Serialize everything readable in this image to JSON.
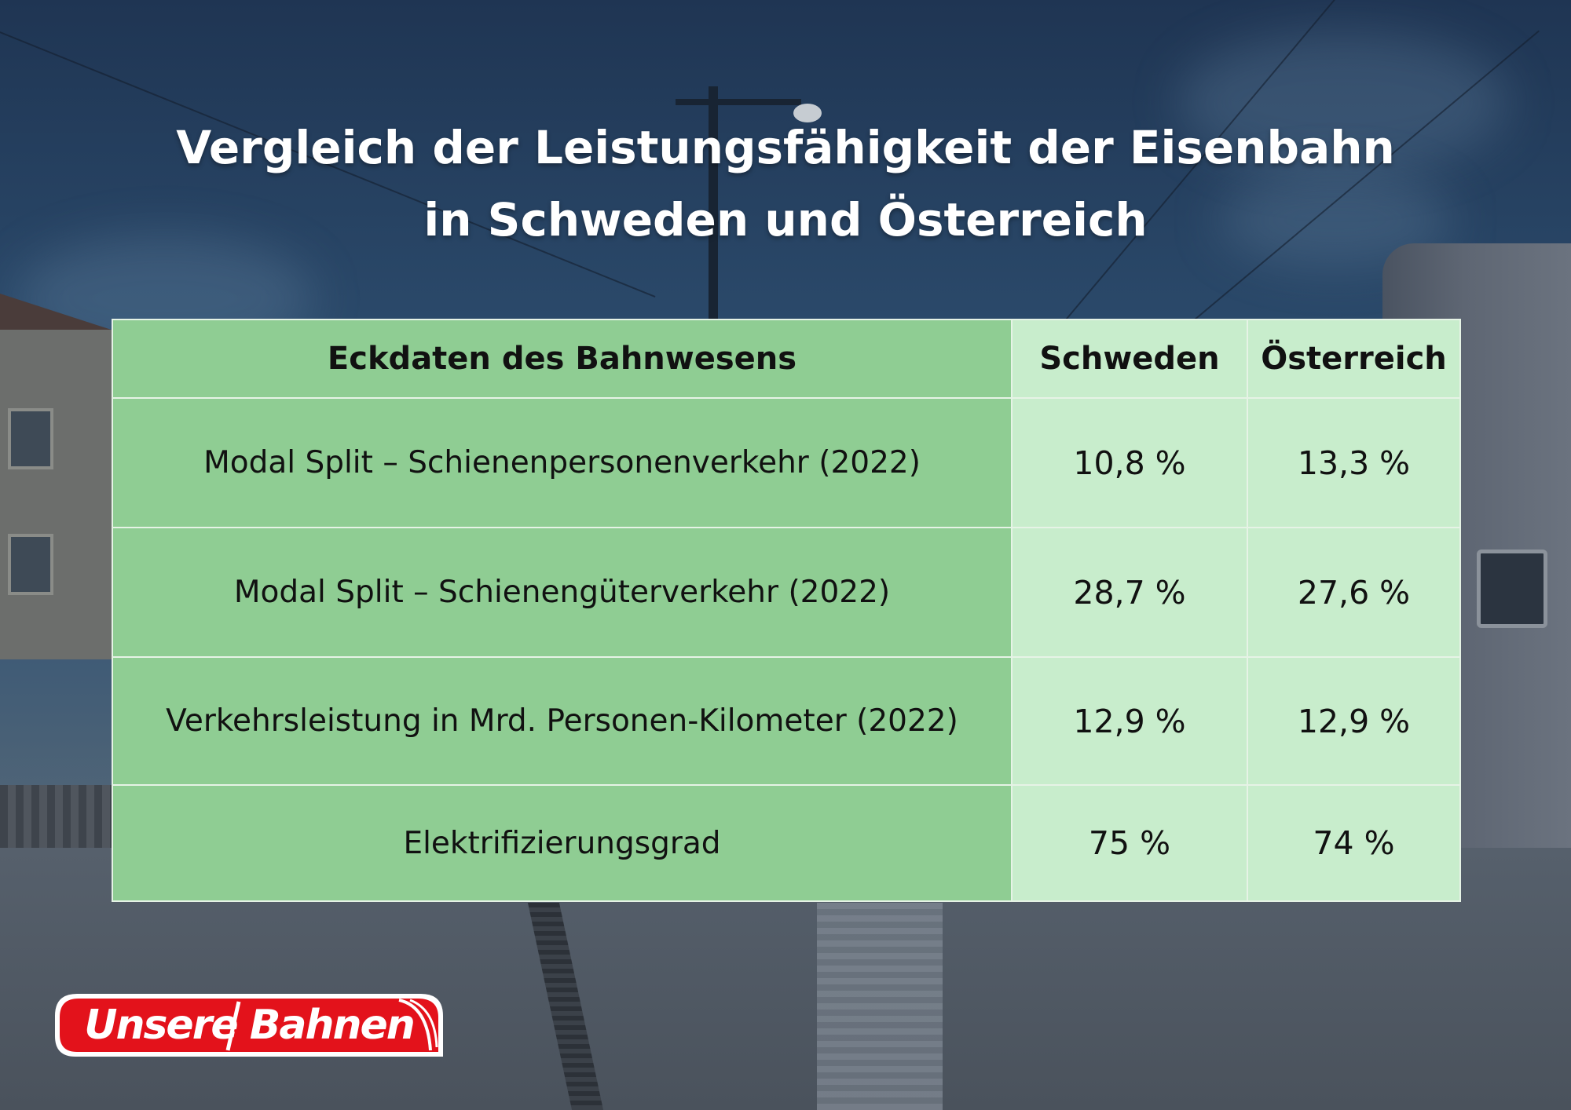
{
  "title": {
    "line1": "Vergleich der Leistungsfähigkeit der Eisenbahn",
    "line2": "in Schweden und Österreich"
  },
  "table": {
    "headers": [
      "Eckdaten des Bahnwesens",
      "Schweden",
      "Österreich"
    ],
    "rows": [
      {
        "label": "Modal Split – Schienenpersonenverkehr (2022)",
        "schweden": "10,8 %",
        "oesterreich": "13,3 %"
      },
      {
        "label": "Modal Split – Schienengüterverkehr (2022)",
        "schweden": "28,7 %",
        "oesterreich": "27,6 %"
      },
      {
        "label": "Verkehrsleistung in Mrd. Personen-Kilometer (2022)",
        "schweden": "12,9 %",
        "oesterreich": "12,9 %"
      },
      {
        "label": "Elektrifizierungsgrad",
        "schweden": "75 %",
        "oesterreich": "74 %"
      }
    ]
  },
  "logo": {
    "text": "Unsere Bahnen"
  },
  "colors": {
    "label_column_bg": "#8fcd93",
    "value_column_bg": "#c8edcc",
    "logo_red": "#e3121b"
  }
}
